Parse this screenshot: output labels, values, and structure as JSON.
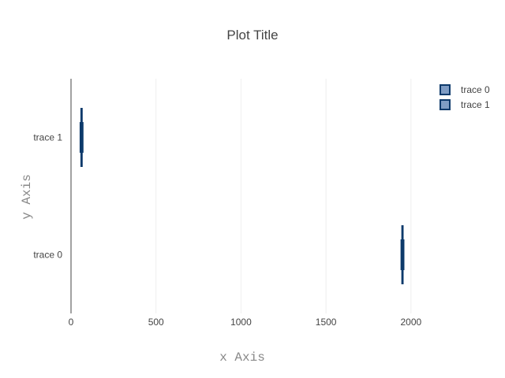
{
  "chart_data": {
    "type": "box",
    "orientation": "horizontal",
    "title": "Plot Title",
    "xlabel": "x Axis",
    "ylabel": "y Axis",
    "xlim": [
      0,
      2400
    ],
    "x_ticks": [
      0,
      500,
      1000,
      1500,
      2000
    ],
    "y_categories": [
      "trace 0",
      "trace 1"
    ],
    "grid": "vertical",
    "legend_position": "top-right",
    "series": [
      {
        "name": "trace 0",
        "category": "trace 0",
        "min": 1948,
        "q1": 1948,
        "median": 1950,
        "q3": 1952,
        "max": 1952
      },
      {
        "name": "trace 1",
        "category": "trace 1",
        "min": 60,
        "q1": 60,
        "median": 62,
        "q3": 64,
        "max": 64
      }
    ],
    "colors": {
      "line": "#0d3a6b",
      "fill": "#7f9cc4"
    }
  }
}
